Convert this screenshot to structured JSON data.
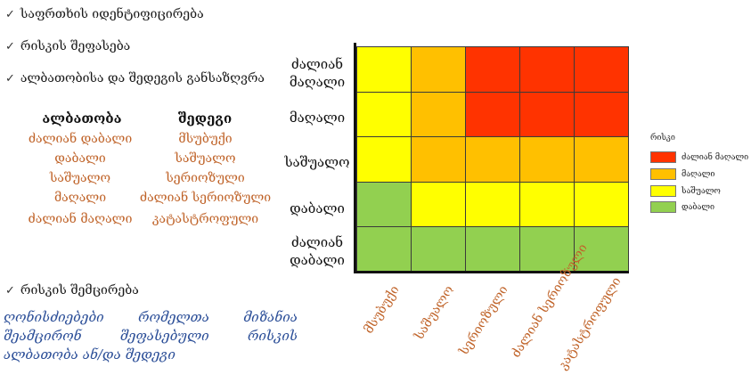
{
  "bullets": [
    "საფრთხის იდენტიფიცირება",
    "რისკის შეფასება",
    "ალბათობისა და შედეგის განსაზღვრა",
    "რისკის შემცირება"
  ],
  "check_glyph": "✓",
  "probability": {
    "heading": "ალბათობა",
    "items": [
      "ძალიან დაბალი",
      "დაბალი",
      "საშუალო",
      "მაღალი",
      "ძალიან მაღალი"
    ]
  },
  "consequence": {
    "heading": "შედეგი",
    "items": [
      "მსუბუქი",
      "საშუალო",
      "სერიოზული",
      "ძალიან სერიოზული",
      "კატასტროფული"
    ]
  },
  "note": "ღონისძიებები რომელთა მიზანია შეამცირონ შეფასებული რისკის ალბათობა ან/და შედეგი",
  "matrix": {
    "row_labels": [
      [
        "ძალიან",
        "მაღალი"
      ],
      [
        "მაღალი"
      ],
      [
        "საშუალო"
      ],
      [
        "დაბალი"
      ],
      [
        "ძალიან",
        "დაბალი"
      ]
    ],
    "col_labels": [
      "მსუბუქი",
      "საშუალო",
      "სერიოზული",
      "ძალიან სერიოზული",
      "კატასტროფული"
    ],
    "grid": [
      [
        "medium",
        "high",
        "very_high",
        "very_high",
        "very_high"
      ],
      [
        "medium",
        "high",
        "very_high",
        "very_high",
        "very_high"
      ],
      [
        "medium",
        "high",
        "high",
        "high",
        "high"
      ],
      [
        "low",
        "medium",
        "medium",
        "medium",
        "medium"
      ],
      [
        "low",
        "low",
        "low",
        "low",
        "low"
      ]
    ]
  },
  "legend": {
    "title": "რისკი",
    "entries": [
      {
        "key": "very_high",
        "label": "ძალიან მაღალი",
        "color": "#ff3300"
      },
      {
        "key": "high",
        "label": "მაღალი",
        "color": "#ffc000"
      },
      {
        "key": "medium",
        "label": "საშუალო",
        "color": "#ffff00"
      },
      {
        "key": "low",
        "label": "დაბალი",
        "color": "#92d050"
      }
    ]
  }
}
